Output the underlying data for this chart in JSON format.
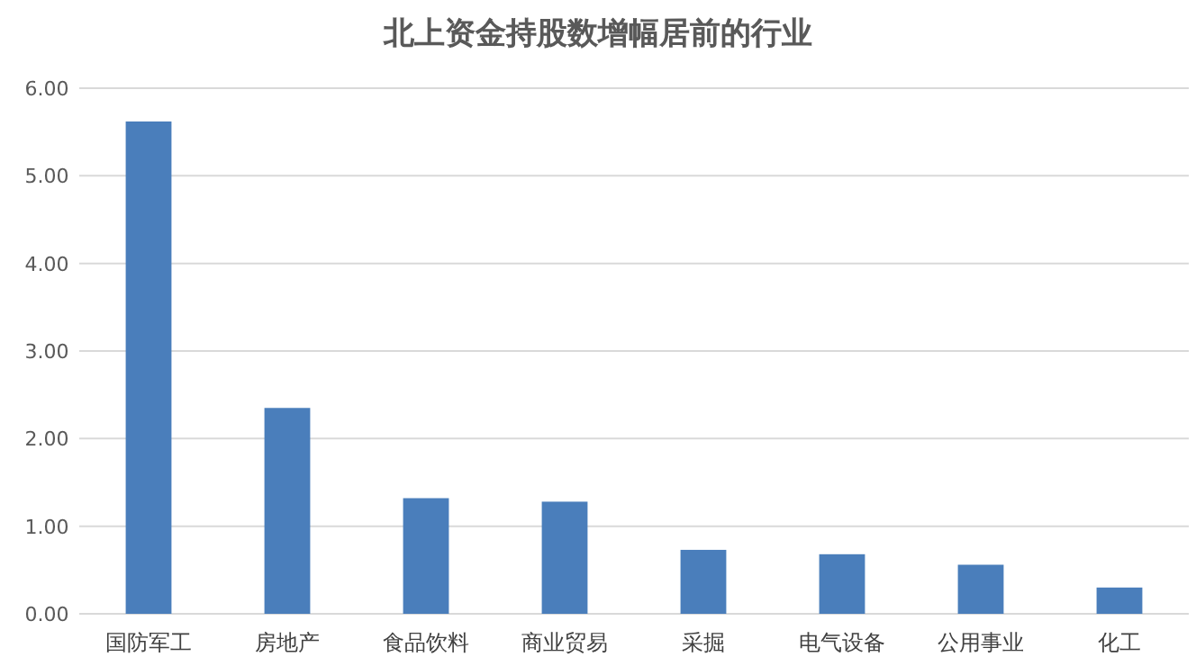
{
  "chart_data": {
    "type": "bar",
    "title": "北上资金持股数增幅居前的行业",
    "categories": [
      "国防军工",
      "房地产",
      "食品饮料",
      "商业贸易",
      "采掘",
      "电气设备",
      "公用事业",
      "化工"
    ],
    "values": [
      5.62,
      2.35,
      1.32,
      1.28,
      0.73,
      0.68,
      0.56,
      0.3
    ],
    "color": "#4a7ebb",
    "ylim": [
      0,
      6
    ],
    "yticks": [
      {
        "value": 0,
        "label": "0.00"
      },
      {
        "value": 1,
        "label": "1.00"
      },
      {
        "value": 2,
        "label": "2.00"
      },
      {
        "value": 3,
        "label": "3.00"
      },
      {
        "value": 4,
        "label": "4.00"
      },
      {
        "value": 5,
        "label": "5.00"
      },
      {
        "value": 6,
        "label": "6.00"
      }
    ],
    "grid": "y"
  }
}
